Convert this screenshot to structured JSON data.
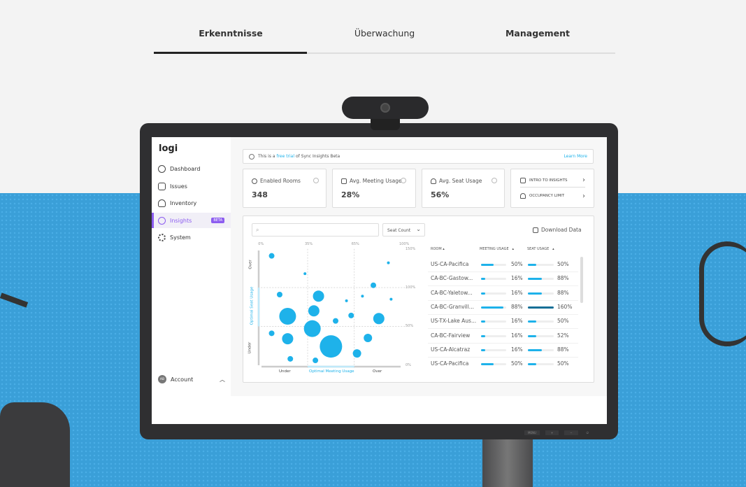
{
  "tabs": [
    {
      "label": "Erkenntnisse",
      "active": true
    },
    {
      "label": "Überwachung",
      "active": false
    },
    {
      "label": "Management",
      "active": false
    }
  ],
  "app": {
    "logo": "logi",
    "sidebar": {
      "items": [
        {
          "label": "Dashboard",
          "icon": "dashboard-icon"
        },
        {
          "label": "Issues",
          "icon": "issues-icon"
        },
        {
          "label": "Inventory",
          "icon": "cloud-icon"
        },
        {
          "label": "Insights",
          "icon": "lightbulb-icon",
          "badge": "BETA",
          "active": true
        },
        {
          "label": "System",
          "icon": "gear-icon"
        }
      ],
      "account": {
        "initials": "AB",
        "label": "Account"
      }
    },
    "banner": {
      "prefix": "This is a ",
      "link": "free trial",
      "suffix": " of Sync Insights Beta",
      "learn_more": "Learn More"
    },
    "cards": [
      {
        "title": "Enabled Rooms",
        "value": "348"
      },
      {
        "title": "Avg. Meeting Usage",
        "value": "28%"
      },
      {
        "title": "Avg. Seat Usage",
        "value": "56%"
      }
    ],
    "links": [
      {
        "label": "INTRO TO INSIGHTS"
      },
      {
        "label": "OCCUPANCY LIMIT"
      }
    ],
    "toolbar": {
      "search_placeholder": "",
      "select": "Seat Count",
      "download": "Download Data"
    },
    "table": {
      "headers": [
        "ROOM",
        "MEETING USAGE",
        "SEAT USAGE"
      ],
      "rows": [
        {
          "room": "US-CA-Pacifica",
          "meeting": 50,
          "meeting_label": "50%",
          "seat": 50,
          "seat_label": "50%"
        },
        {
          "room": "CA-BC-Gastow...",
          "meeting": 16,
          "meeting_label": "16%",
          "seat": 88,
          "seat_label": "88%"
        },
        {
          "room": "CA-BC-Yaletow...",
          "meeting": 16,
          "meeting_label": "16%",
          "seat": 88,
          "seat_label": "88%"
        },
        {
          "room": "CA-BC-Granvill...",
          "meeting": 88,
          "meeting_label": "88%",
          "seat": 160,
          "seat_label": "160%"
        },
        {
          "room": "US-TX-Lake Aus...",
          "meeting": 16,
          "meeting_label": "16%",
          "seat": 50,
          "seat_label": "50%"
        },
        {
          "room": "CA-BC-Fairview",
          "meeting": 16,
          "meeting_label": "16%",
          "seat": 52,
          "seat_label": "52%"
        },
        {
          "room": "US-CA-Alcatraz",
          "meeting": 16,
          "meeting_label": "16%",
          "seat": 88,
          "seat_label": "88%"
        },
        {
          "room": "US-CA-Pacifica",
          "meeting": 50,
          "meeting_label": "50%",
          "seat": 50,
          "seat_label": "50%"
        }
      ]
    },
    "colors": {
      "accent": "#1eb2ea",
      "brand": "#8c5cf0",
      "overload": "#156f96"
    }
  },
  "chart_data": {
    "type": "scatter",
    "x_ticks": [
      "0%",
      "35%",
      "65%",
      "100%"
    ],
    "y_ticks": [
      "150%",
      "100%",
      "50%",
      "0%"
    ],
    "x_zone_labels": [
      "Under",
      "Optimal Meeting Usage",
      "Over"
    ],
    "y_zone_labels": [
      "Over",
      "Optimal Seat Usage",
      "Under"
    ],
    "xlim": [
      0,
      100
    ],
    "ylim": [
      0,
      150
    ],
    "grid": true,
    "points": [
      {
        "x": 8,
        "y": 141,
        "size": 2
      },
      {
        "x": 33,
        "y": 118,
        "size": 1
      },
      {
        "x": 14,
        "y": 91,
        "size": 2
      },
      {
        "x": 42,
        "y": 89,
        "size": 4
      },
      {
        "x": 20,
        "y": 63,
        "size": 6
      },
      {
        "x": 39,
        "y": 70,
        "size": 4
      },
      {
        "x": 8,
        "y": 41,
        "size": 2
      },
      {
        "x": 20,
        "y": 34,
        "size": 4
      },
      {
        "x": 38,
        "y": 47,
        "size": 6
      },
      {
        "x": 50,
        "y": 24,
        "size": 8
      },
      {
        "x": 53,
        "y": 57,
        "size": 2
      },
      {
        "x": 60,
        "y": 83,
        "size": 1
      },
      {
        "x": 63,
        "y": 64,
        "size": 2
      },
      {
        "x": 71,
        "y": 89,
        "size": 1
      },
      {
        "x": 79,
        "y": 103,
        "size": 2
      },
      {
        "x": 90,
        "y": 132,
        "size": 1
      },
      {
        "x": 92,
        "y": 85,
        "size": 1
      },
      {
        "x": 83,
        "y": 60,
        "size": 4
      },
      {
        "x": 75,
        "y": 35,
        "size": 3
      },
      {
        "x": 67,
        "y": 15,
        "size": 3
      },
      {
        "x": 22,
        "y": 8,
        "size": 2
      },
      {
        "x": 40,
        "y": 6,
        "size": 2
      }
    ]
  },
  "monitor": {
    "buttons": [
      "MENU",
      "+",
      "−",
      "⏻"
    ]
  }
}
